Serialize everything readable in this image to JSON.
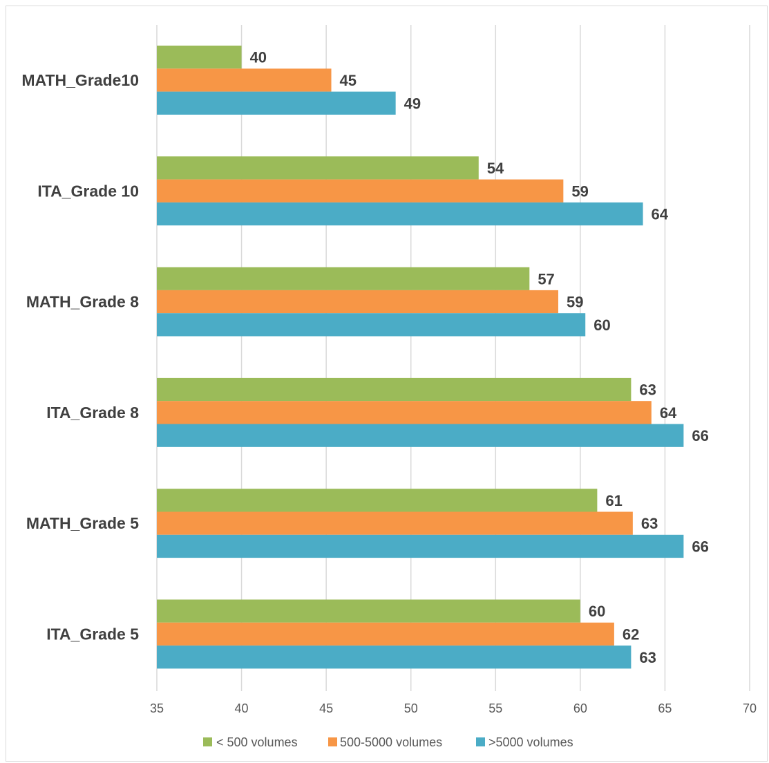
{
  "chart_data": {
    "type": "bar",
    "orientation": "horizontal",
    "categories": [
      "MATH_Grade10",
      "ITA_Grade 10",
      "MATH_Grade 8",
      "ITA_Grade 8",
      "MATH_Grade 5",
      "ITA_Grade 5"
    ],
    "series": [
      {
        "name": "< 500 volumes",
        "color": "#9bbb59",
        "values": [
          40,
          54,
          57,
          63,
          61,
          60
        ],
        "labels": [
          "40",
          "54",
          "57",
          "63",
          "61",
          "60"
        ]
      },
      {
        "name": "500-5000 volumes",
        "color": "#f79646",
        "values": [
          45.3,
          59,
          58.7,
          64.2,
          63.1,
          62
        ],
        "labels": [
          "45",
          "59",
          "59",
          "64",
          "63",
          "62"
        ]
      },
      {
        "name": ">5000 volumes",
        "color": "#4bacc6",
        "values": [
          49.1,
          63.7,
          60.3,
          66.1,
          66.1,
          63
        ],
        "labels": [
          "49",
          "64",
          "60",
          "66",
          "66",
          "63"
        ]
      }
    ],
    "xlim": [
      35,
      70
    ],
    "xticks": [
      "35",
      "40",
      "45",
      "50",
      "55",
      "60",
      "65",
      "70"
    ],
    "grid": true,
    "legend_position": "bottom",
    "title": "",
    "xlabel": "",
    "ylabel": ""
  }
}
